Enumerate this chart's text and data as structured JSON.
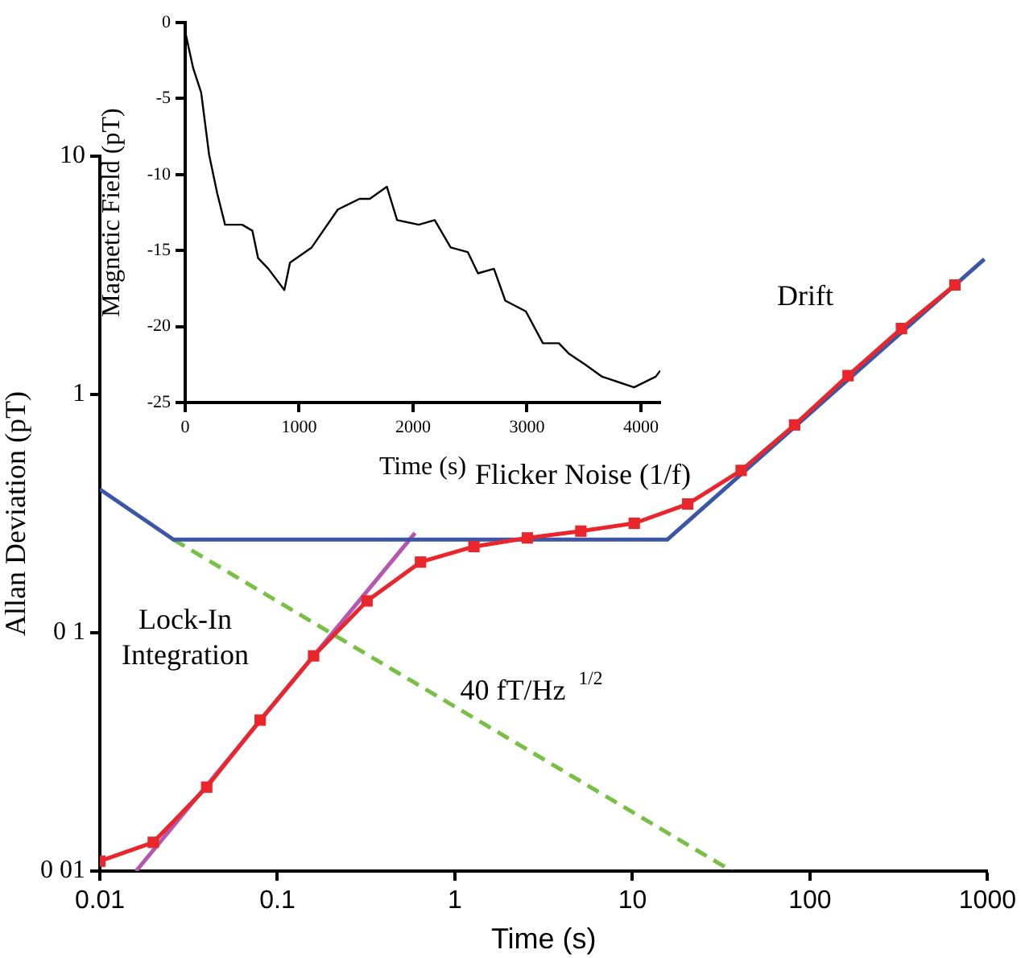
{
  "chart_data": [
    {
      "type": "line",
      "xlabel": "Time (s)",
      "ylabel": "Allan Deviation (pT)",
      "log": "xy",
      "xlim": [
        0.01,
        1000
      ],
      "ylim": [
        0.01,
        10
      ],
      "xticks": [
        0.01,
        0.1,
        1,
        10,
        100,
        1000
      ],
      "yticks": [
        {
          "value": 0.01,
          "label": "0 01"
        },
        {
          "value": 0.1,
          "label": "0 1"
        },
        1,
        10
      ],
      "grid": false,
      "legend": false,
      "series": [
        {
          "color": "#e8262b",
          "marker": "square",
          "x": [
            0.01,
            0.02,
            0.04,
            0.08,
            0.16,
            0.32,
            0.64,
            1.28,
            2.56,
            5.12,
            10.24,
            20.48,
            40.96,
            81.92,
            163.84,
            327.68,
            655.36
          ],
          "values": [
            0.011,
            0.0132,
            0.0225,
            0.043,
            0.08,
            0.136,
            0.198,
            0.23,
            0.25,
            0.267,
            0.288,
            0.347,
            0.48,
            0.745,
            1.2,
            1.89,
            2.88
          ]
        },
        {
          "color": "#3a56a5",
          "marker": "none",
          "x": [
            0.01,
            0.026,
            15.7,
            960
          ],
          "values": [
            0.4,
            0.246,
            0.246,
            3.7
          ]
        },
        {
          "color": "#77c043",
          "marker": "none",
          "line_style": "dashed",
          "x": [
            0.026,
            36.3
          ],
          "values": [
            0.246,
            0.01
          ]
        },
        {
          "color": "#b556b0",
          "marker": "none",
          "x": [
            0.016,
            0.596
          ],
          "values": [
            0.01,
            0.262
          ]
        }
      ],
      "annotations": [
        "Lock-In\nIntegration",
        "40 fT/Hz$^{1/2}$",
        "Flicker Noise (1/f)",
        "Drift"
      ]
    },
    {
      "type": "line",
      "xlabel": "Time (s)",
      "ylabel": "Magnetic Field (pT)",
      "xlim": [
        0,
        4170
      ],
      "ylim": [
        -25,
        0
      ],
      "xticks": [
        0,
        1000,
        2000,
        3000,
        4000
      ],
      "yticks": [
        -25,
        -20,
        -15,
        -10,
        -5,
        0
      ],
      "grid": false,
      "legend": false,
      "marker": "none",
      "series": [
        {
          "color": "#000000",
          "x": [
            0,
            70,
            140,
            210,
            280,
            350,
            500,
            590,
            640,
            730,
            870,
            920,
            1110,
            1340,
            1530,
            1620,
            1770,
            1860,
            2050,
            2190,
            2330,
            2480,
            2570,
            2710,
            2810,
            2990,
            3140,
            3280,
            3370,
            3510,
            3660,
            3940,
            4130,
            4170
          ],
          "values": [
            -0.6,
            -3,
            -4.6,
            -8.7,
            -11.2,
            -13.3,
            -13.3,
            -13.7,
            -15.5,
            -16.2,
            -17.6,
            -15.8,
            -14.8,
            -12.3,
            -11.6,
            -11.6,
            -10.8,
            -13,
            -13.3,
            -13,
            -14.8,
            -15.1,
            -16.5,
            -16.2,
            -18.3,
            -19,
            -21.1,
            -21.1,
            -21.8,
            -22.5,
            -23.3,
            -24,
            -23.3,
            -22.9
          ]
        }
      ]
    }
  ]
}
